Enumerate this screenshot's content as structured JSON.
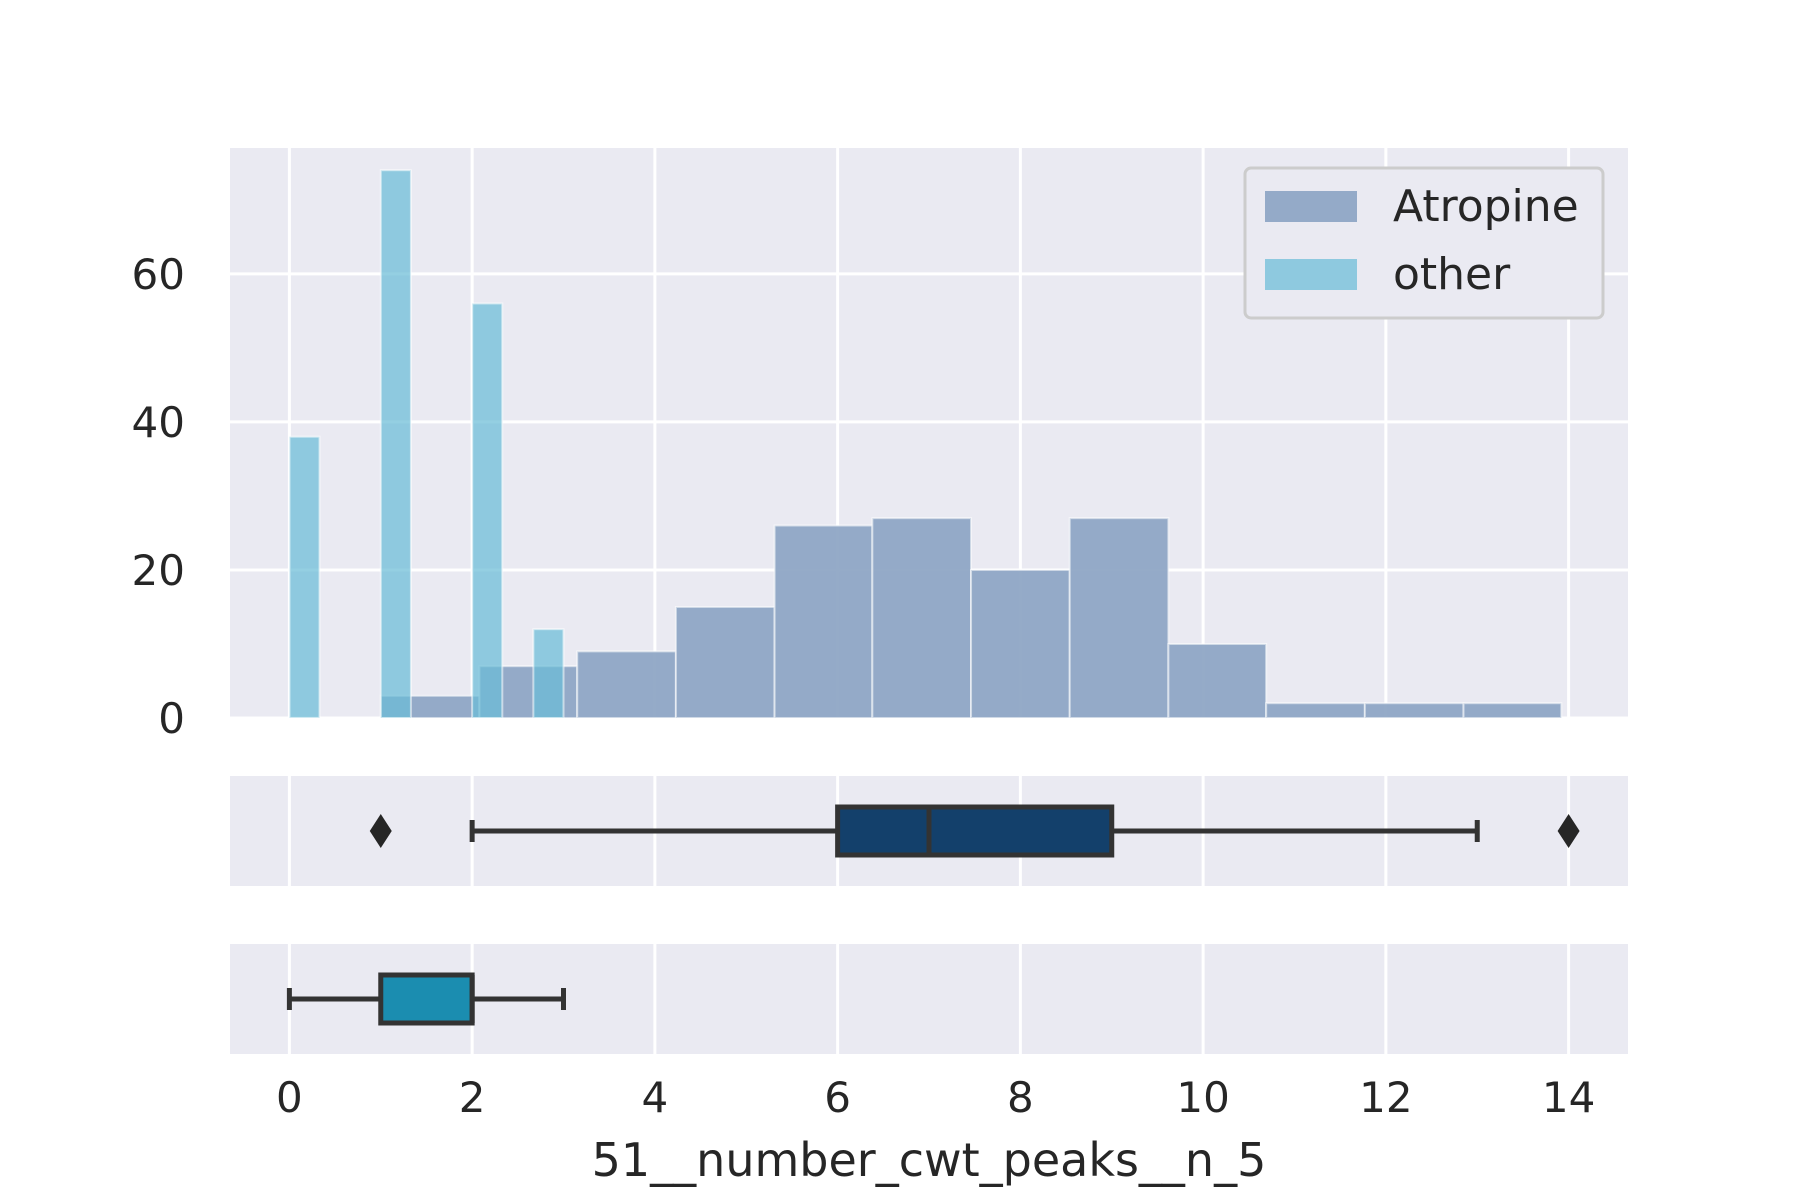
{
  "chart_data": {
    "type": "histogram_with_boxplots",
    "xlabel": "51__number_cwt_peaks__n_5",
    "xlim": [
      -0.65,
      14.65
    ],
    "x_ticks": [
      0,
      2,
      4,
      6,
      8,
      10,
      12,
      14
    ],
    "x_tick_labels": [
      "0",
      "2",
      "4",
      "6",
      "8",
      "10",
      "12",
      "14"
    ],
    "histogram": {
      "ylim": [
        0,
        77
      ],
      "y_ticks": [
        0,
        20,
        40,
        60
      ],
      "y_tick_labels": [
        "0",
        "20",
        "40",
        "60"
      ],
      "legend_position": "top-right",
      "series": [
        {
          "name": "Atropine",
          "color": "#8fa7c5",
          "bins": [
            {
              "x0": 1.0,
              "x1": 2.08,
              "count": 3
            },
            {
              "x0": 2.08,
              "x1": 3.15,
              "count": 7
            },
            {
              "x0": 3.15,
              "x1": 4.23,
              "count": 9
            },
            {
              "x0": 4.23,
              "x1": 5.31,
              "count": 15
            },
            {
              "x0": 5.31,
              "x1": 6.38,
              "count": 26
            },
            {
              "x0": 6.38,
              "x1": 7.46,
              "count": 27
            },
            {
              "x0": 7.46,
              "x1": 8.54,
              "count": 20
            },
            {
              "x0": 8.54,
              "x1": 9.62,
              "count": 27
            },
            {
              "x0": 9.62,
              "x1": 10.69,
              "count": 10
            },
            {
              "x0": 10.69,
              "x1": 11.77,
              "count": 2
            },
            {
              "x0": 11.77,
              "x1": 12.85,
              "count": 2
            },
            {
              "x0": 12.85,
              "x1": 13.92,
              "count": 2
            }
          ]
        },
        {
          "name": "other",
          "color": "#6bbdd7",
          "bins": [
            {
              "x0": 0.0,
              "x1": 0.33,
              "count": 38
            },
            {
              "x0": 1.0,
              "x1": 1.33,
              "count": 74
            },
            {
              "x0": 2.0,
              "x1": 2.33,
              "count": 56
            },
            {
              "x0": 2.67,
              "x1": 3.0,
              "count": 12
            }
          ]
        }
      ]
    },
    "boxplots": [
      {
        "name": "Atropine",
        "color": "#13406b",
        "whisker_low": 2,
        "q1": 6,
        "median": 7,
        "q3": 9,
        "whisker_high": 13,
        "outliers": [
          1,
          14
        ]
      },
      {
        "name": "other",
        "color": "#1b8db0",
        "whisker_low": 0,
        "q1": 1,
        "median": 2,
        "q3": 2,
        "whisker_high": 3,
        "outliers": []
      }
    ]
  }
}
